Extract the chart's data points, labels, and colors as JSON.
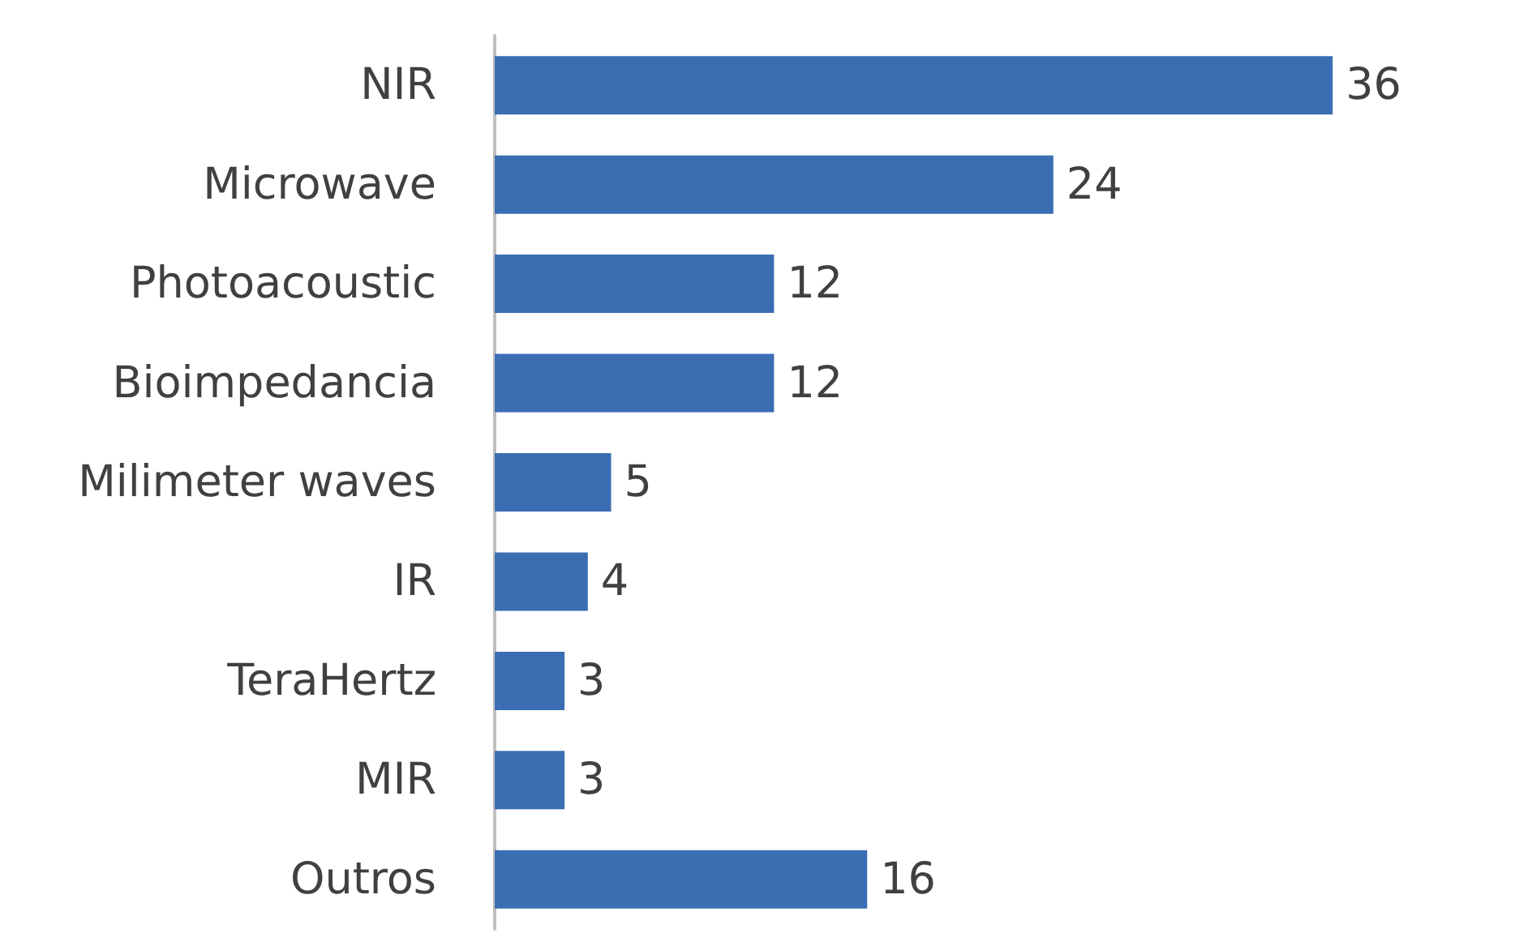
{
  "chart_data": {
    "type": "bar",
    "orientation": "horizontal",
    "categories": [
      "NIR",
      "Microwave",
      "Photoacoustic",
      "Bioimpedancia",
      "Milimeter waves",
      "IR",
      "TeraHertz",
      "MIR",
      "Outros"
    ],
    "values": [
      36,
      24,
      12,
      12,
      5,
      4,
      3,
      3,
      16
    ],
    "color": "#3b6db3",
    "data_labels": true
  }
}
